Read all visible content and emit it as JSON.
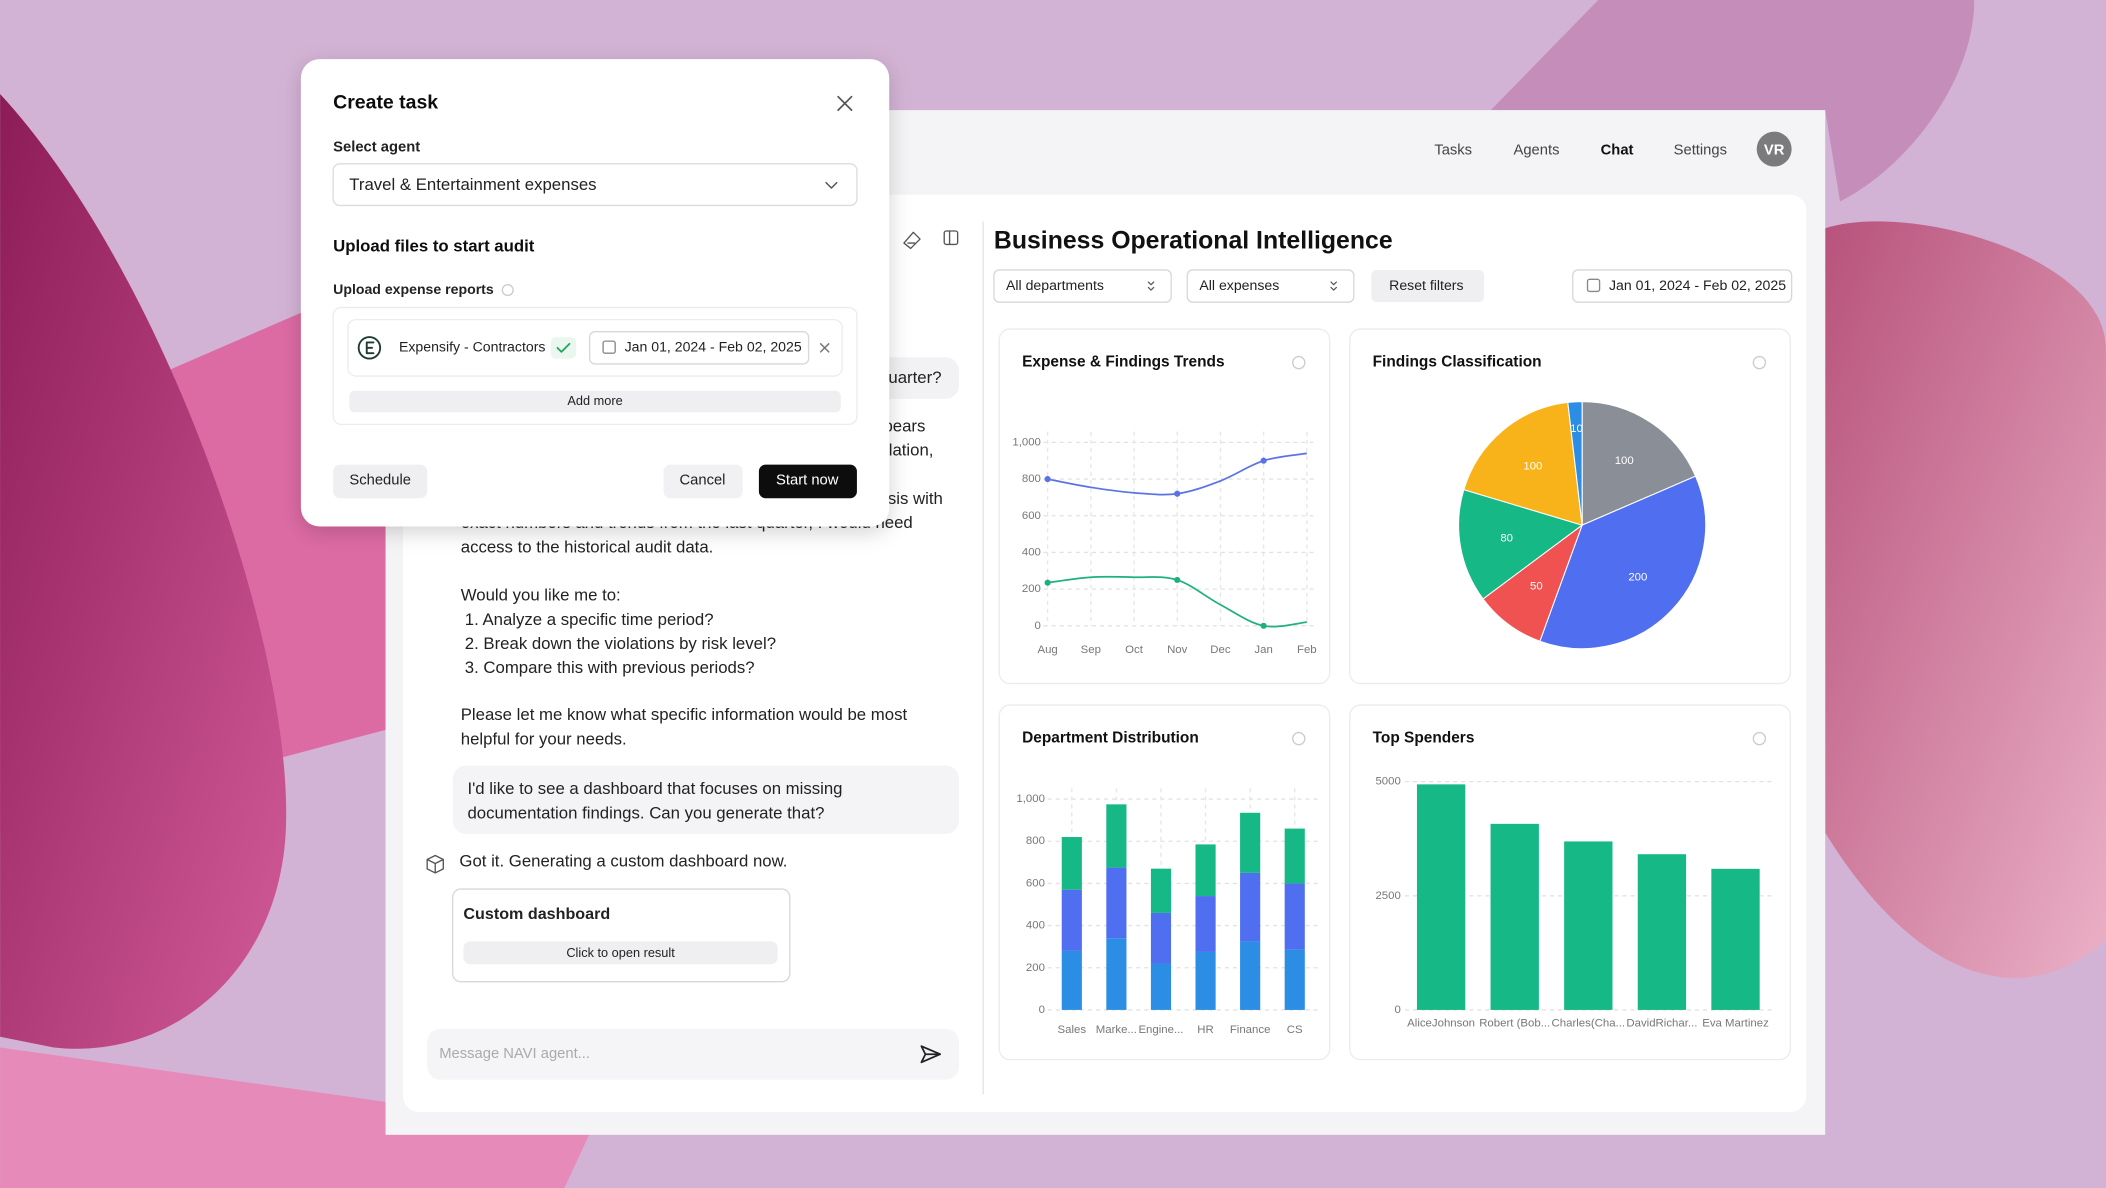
{
  "nav": {
    "items": [
      "Tasks",
      "Agents",
      "Chat",
      "Settings"
    ],
    "avatar": "VR"
  },
  "dialog": {
    "title": "Create task",
    "agent_label": "Select agent",
    "agent_value": "Travel & Entertainment expenses",
    "upload_heading": "Upload files to start audit",
    "reports_label": "Upload expense reports",
    "source": "Expensify - Contractors",
    "date_range": "Jan 01, 2024 - Feb 02, 2025",
    "add_more": "Add more",
    "schedule": "Schedule",
    "cancel": "Cancel",
    "start": "Start now"
  },
  "chat": {
    "user_fragment": "uarter?",
    "fragments": [
      "pears",
      "lation,",
      "sis with"
    ],
    "lines": [
      "exact numbers and trends from the last quarter, I would need",
      "access to the historical audit data.",
      "Would you like me to:"
    ],
    "list": [
      "1. Analyze a specific time period?",
      "2. Break down the violations by risk level?",
      "3. Compare this with previous periods?"
    ],
    "closing": [
      "Please let me know what specific information would be most",
      "helpful for your needs."
    ],
    "user_message": [
      "I'd like to see a dashboard that focuses on missing",
      "documentation findings. Can you generate that?"
    ],
    "reply": "Got it. Generating a custom dashboard now.",
    "card_title": "Custom dashboard",
    "card_button": "Click to open result",
    "placeholder": "Message NAVI agent..."
  },
  "dashboard": {
    "title": "Business Operational Intelligence",
    "filters": {
      "department": "All departments",
      "expense": "All expenses",
      "reset": "Reset filters",
      "date_range": "Jan 01, 2024 - Feb 02, 2025"
    },
    "charts": [
      {
        "type": "line",
        "title": "Expense & Findings Trends",
        "categories": [
          "Aug",
          "Sep",
          "Oct",
          "Nov",
          "Dec",
          "Jan",
          "Feb"
        ],
        "series": [
          {
            "color": "#5b72e4",
            "values": [
              800,
              755,
              725,
              720,
              790,
              900,
              940
            ]
          },
          {
            "color": "#1fb07f",
            "values": [
              235,
              265,
              265,
              250,
              115,
              0,
              20
            ]
          }
        ],
        "ylim": [
          0,
          1000
        ],
        "yticks": [
          0,
          200,
          400,
          600,
          800,
          {
            "value": 1000,
            "label": "1,000"
          }
        ],
        "grid": true
      },
      {
        "type": "pie",
        "title": "Findings Classification",
        "values": [
          100,
          200,
          50,
          80,
          100,
          10
        ],
        "colors": [
          "#8a8e96",
          "#4f6ef0",
          "#f05252",
          "#16b885",
          "#f8b31a",
          "#2b8de3"
        ]
      },
      {
        "type": "bar",
        "stacked": true,
        "title": "Department Distribution",
        "categories": [
          "Sales",
          "Marke...",
          "Engine...",
          "HR",
          "Finance",
          "CS"
        ],
        "series": [
          {
            "color": "#2b8de3",
            "values": [
              280,
              340,
              220,
              275,
              325,
              285
            ]
          },
          {
            "color": "#4f6ef0",
            "values": [
              290,
              335,
              240,
              265,
              325,
              315
            ]
          },
          {
            "color": "#16b885",
            "values": [
              250,
              300,
              210,
              245,
              285,
              260
            ]
          }
        ],
        "ylim": [
          0,
          1000
        ],
        "yticks": [
          0,
          200,
          400,
          600,
          800,
          {
            "value": 1000,
            "label": "1,000"
          }
        ],
        "grid": true
      },
      {
        "type": "bar",
        "title": "Top Spenders",
        "categories": [
          "AliceJohnson",
          "Robert (Bob...",
          "Charles(Cha...",
          "DavidRichar...",
          "Eva Martinez"
        ],
        "values": [
          4940,
          4075,
          3690,
          3410,
          3090
        ],
        "color": "#16b885",
        "ylim": [
          0,
          5000
        ],
        "yticks": [
          0,
          2500,
          5000
        ],
        "grid": true
      }
    ]
  }
}
